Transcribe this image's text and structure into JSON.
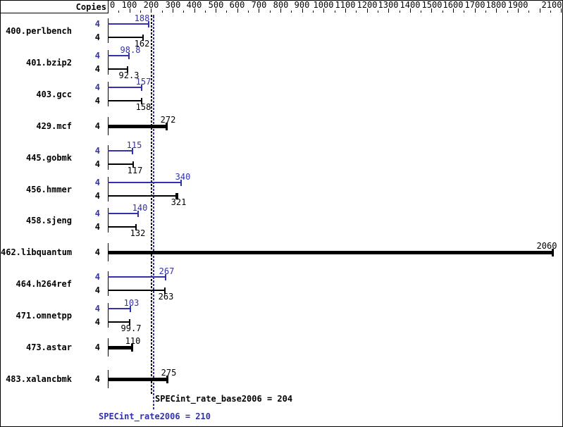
{
  "header": {
    "copies_label": "Copies"
  },
  "colors": {
    "peak": "#3232aa",
    "base": "#000000"
  },
  "axis": {
    "min": 0,
    "max": 2100,
    "major_step": 100,
    "minor_step": 50,
    "tick_labels": [
      0,
      100,
      200,
      300,
      400,
      500,
      600,
      700,
      800,
      900,
      1000,
      1100,
      1200,
      1300,
      1400,
      1500,
      1600,
      1700,
      1800,
      1900,
      2100
    ]
  },
  "benchmarks": [
    {
      "name": "400.perlbench",
      "copies": "4",
      "single": false,
      "peak": {
        "value": 188,
        "label": "188"
      },
      "base": {
        "value": 162,
        "label": "162"
      }
    },
    {
      "name": "401.bzip2",
      "copies": "4",
      "single": false,
      "peak": {
        "value": 98.8,
        "label": "98.8"
      },
      "base": {
        "value": 92.3,
        "label": "92.3"
      }
    },
    {
      "name": "403.gcc",
      "copies": "4",
      "single": false,
      "peak": {
        "value": 157,
        "label": "157"
      },
      "base": {
        "value": 158,
        "label": "158"
      }
    },
    {
      "name": "429.mcf",
      "copies": "4",
      "single": true,
      "base": {
        "value": 272,
        "label": "272"
      }
    },
    {
      "name": "445.gobmk",
      "copies": "4",
      "single": false,
      "peak": {
        "value": 115,
        "label": "115"
      },
      "base": {
        "value": 117,
        "label": "117"
      }
    },
    {
      "name": "456.hmmer",
      "copies": "4",
      "single": false,
      "peak": {
        "value": 340,
        "label": "340"
      },
      "base": {
        "value": 321,
        "label": "321",
        "bold_end": true
      }
    },
    {
      "name": "458.sjeng",
      "copies": "4",
      "single": false,
      "peak": {
        "value": 140,
        "label": "140"
      },
      "base": {
        "value": 132,
        "label": "132"
      }
    },
    {
      "name": "462.libquantum",
      "copies": "4",
      "single": true,
      "base": {
        "value": 2060,
        "label": "2060"
      }
    },
    {
      "name": "464.h264ref",
      "copies": "4",
      "single": false,
      "peak": {
        "value": 267,
        "label": "267"
      },
      "base": {
        "value": 263,
        "label": "263"
      }
    },
    {
      "name": "471.omnetpp",
      "copies": "4",
      "single": false,
      "peak": {
        "value": 103,
        "label": "103"
      },
      "base": {
        "value": 99.7,
        "label": "99.7"
      }
    },
    {
      "name": "473.astar",
      "copies": "4",
      "single": true,
      "base": {
        "value": 110,
        "label": "110"
      }
    },
    {
      "name": "483.xalancbmk",
      "copies": "4",
      "single": true,
      "base": {
        "value": 275,
        "label": "275"
      }
    }
  ],
  "reference_lines": [
    {
      "name": "base",
      "value": 204,
      "color": "#000000",
      "label": "SPECint_rate_base2006 = 204"
    },
    {
      "name": "peak",
      "value": 210,
      "color": "#3232aa",
      "label": "SPECint_rate2006 = 210"
    }
  ],
  "chart_data": {
    "type": "bar",
    "orientation": "horizontal",
    "title": "",
    "xlabel": "",
    "ylabel": "Copies",
    "categories": [
      "400.perlbench",
      "401.bzip2",
      "403.gcc",
      "429.mcf",
      "445.gobmk",
      "456.hmmer",
      "458.sjeng",
      "462.libquantum",
      "464.h264ref",
      "471.omnetpp",
      "473.astar",
      "483.xalancbmk"
    ],
    "copies_per_benchmark": 4,
    "series": [
      {
        "name": "SPECint_rate2006 (peak)",
        "color": "#3232aa",
        "values": [
          188,
          98.8,
          157,
          null,
          115,
          340,
          140,
          null,
          267,
          103,
          null,
          null
        ]
      },
      {
        "name": "SPECint_rate_base2006 (base)",
        "color": "#000000",
        "values": [
          162,
          92.3,
          158,
          272,
          117,
          321,
          132,
          2060,
          263,
          99.7,
          110,
          275
        ]
      }
    ],
    "reference_lines": [
      {
        "label": "SPECint_rate_base2006",
        "value": 204
      },
      {
        "label": "SPECint_rate2006",
        "value": 210
      }
    ],
    "xlim": [
      0,
      2100
    ],
    "x_major_tick": 100,
    "x_minor_tick": 50,
    "grid": false,
    "legend_position": "none"
  }
}
